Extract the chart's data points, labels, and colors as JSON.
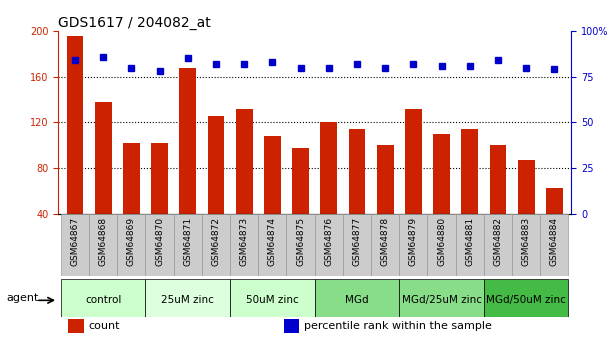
{
  "title": "GDS1617 / 204082_at",
  "samples": [
    "GSM64867",
    "GSM64868",
    "GSM64869",
    "GSM64870",
    "GSM64871",
    "GSM64872",
    "GSM64873",
    "GSM64874",
    "GSM64875",
    "GSM64876",
    "GSM64877",
    "GSM64878",
    "GSM64879",
    "GSM64880",
    "GSM64881",
    "GSM64882",
    "GSM64883",
    "GSM64884"
  ],
  "counts": [
    196,
    138,
    102,
    102,
    168,
    126,
    132,
    108,
    98,
    120,
    114,
    100,
    132,
    110,
    114,
    100,
    87,
    63
  ],
  "percentile_ranks": [
    84,
    86,
    80,
    78,
    85,
    82,
    82,
    83,
    80,
    80,
    82,
    80,
    82,
    81,
    81,
    84,
    80,
    79
  ],
  "groups": [
    {
      "label": "control",
      "start": 0,
      "end": 3,
      "color": "#ccffcc"
    },
    {
      "label": "25uM zinc",
      "start": 3,
      "end": 6,
      "color": "#ddffdd"
    },
    {
      "label": "50uM zinc",
      "start": 6,
      "end": 9,
      "color": "#ccffcc"
    },
    {
      "label": "MGd",
      "start": 9,
      "end": 12,
      "color": "#88dd88"
    },
    {
      "label": "MGd/25uM zinc",
      "start": 12,
      "end": 15,
      "color": "#88dd88"
    },
    {
      "label": "MGd/50uM zinc",
      "start": 15,
      "end": 18,
      "color": "#44bb44"
    }
  ],
  "ylim_left": [
    40,
    200
  ],
  "ylim_right": [
    0,
    100
  ],
  "yticks_left": [
    40,
    80,
    120,
    160,
    200
  ],
  "yticks_right": [
    0,
    25,
    50,
    75,
    100
  ],
  "yticklabels_right": [
    "0",
    "25",
    "50",
    "75",
    "100%"
  ],
  "bar_color": "#cc2200",
  "dot_color": "#0000cc",
  "bar_width": 0.6,
  "grid_color": "#000000",
  "bg_color": "#ffffff",
  "tick_label_color_left": "#cc2200",
  "tick_label_color_right": "#0000cc",
  "legend_items": [
    {
      "label": "count",
      "color": "#cc2200"
    },
    {
      "label": "percentile rank within the sample",
      "color": "#0000cc"
    }
  ],
  "agent_label": "agent",
  "title_fontsize": 10,
  "tick_fontsize": 7,
  "group_label_fontsize": 7.5,
  "legend_fontsize": 8,
  "sample_label_fontsize": 6.5,
  "xtick_bg_color": "#cccccc",
  "xtick_edge_color": "#999999"
}
